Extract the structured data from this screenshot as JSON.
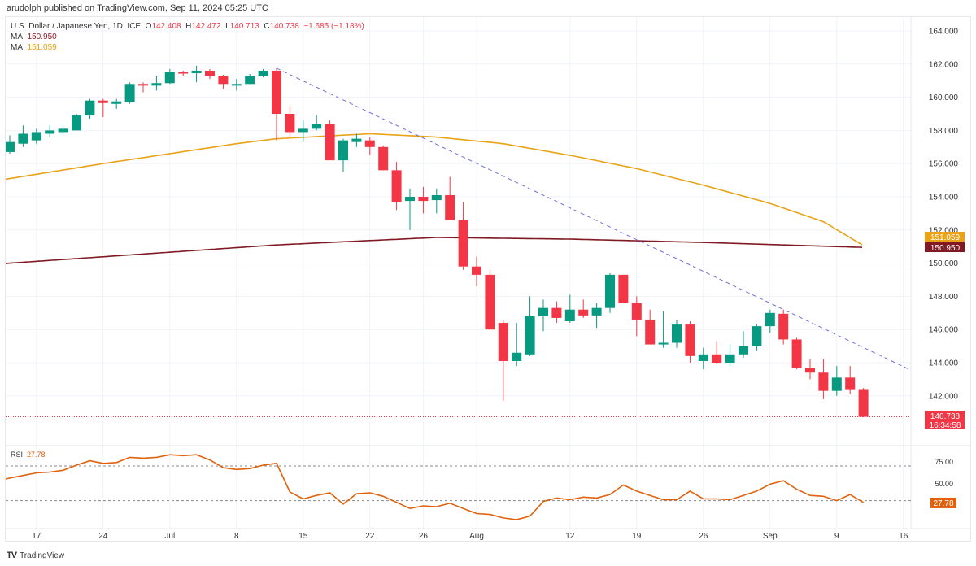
{
  "header": {
    "published": "arudolph published on TradingView.com, Sep 11, 2024 05:25 UTC",
    "symbol": "U.S. Dollar / Japanese Yen, 1D, ICE",
    "o_label": "O",
    "o": "142.408",
    "h_label": "H",
    "h": "142.472",
    "l_label": "L",
    "l": "140.713",
    "c_label": "C",
    "c": "140.738",
    "change": "−1.685 (−1.18%)",
    "ma1_label": "MA",
    "ma1_value": "150.950",
    "ma2_label": "MA",
    "ma2_value": "151.059"
  },
  "rsi": {
    "label": "RSI",
    "value": "27.78"
  },
  "footer": {
    "brand": "TradingView"
  },
  "colors": {
    "up": "#089981",
    "down": "#f23645",
    "ma_long": "#801922",
    "ma_short": "#e8a317",
    "rsi": "#e0620d",
    "trendline": "#6e6ed8"
  },
  "price_labels": {
    "ma_short": "151.059",
    "ma_long": "150.950",
    "last": "140.738",
    "countdown": "16:34:58",
    "rsi_last": "27.78"
  },
  "chart_data": [
    {
      "type": "candlestick",
      "y_axis": {
        "range": [
          140,
          164.6
        ],
        "ticks": [
          "142.000",
          "144.000",
          "146.000",
          "148.000",
          "150.000",
          "152.000",
          "154.000",
          "156.000",
          "158.000",
          "160.000",
          "162.000",
          "164.000"
        ],
        "side": "right"
      },
      "x_ticks": [
        {
          "date": "Jun 17",
          "label": "17"
        },
        {
          "date": "Jun 24",
          "label": "24"
        },
        {
          "date": "Jul 1",
          "label": "Jul"
        },
        {
          "date": "Jul 8",
          "label": "8"
        },
        {
          "date": "Jul 15",
          "label": "15"
        },
        {
          "date": "Jul 22",
          "label": "22"
        },
        {
          "date": "Jul 26",
          "label": "26"
        },
        {
          "date": "Aug 1",
          "label": "Aug"
        },
        {
          "date": "Aug 12",
          "label": "12"
        },
        {
          "date": "Aug 19",
          "label": "19"
        },
        {
          "date": "Aug 26",
          "label": "26"
        },
        {
          "date": "Sep 2",
          "label": "Sep"
        },
        {
          "date": "Sep 9",
          "label": "9"
        },
        {
          "date": "Sep 16",
          "label": "16"
        }
      ],
      "grid": true,
      "candles": [
        {
          "d": "Jun 13",
          "o": 156.7,
          "h": 157.7,
          "l": 156.6,
          "c": 157.3
        },
        {
          "d": "Jun 14",
          "o": 157.2,
          "h": 158.3,
          "l": 157.0,
          "c": 157.8
        },
        {
          "d": "Jun 17",
          "o": 157.4,
          "h": 158.1,
          "l": 157.2,
          "c": 157.9
        },
        {
          "d": "Jun 18",
          "o": 157.8,
          "h": 158.3,
          "l": 157.6,
          "c": 158.0
        },
        {
          "d": "Jun 19",
          "o": 157.9,
          "h": 158.3,
          "l": 157.7,
          "c": 158.1
        },
        {
          "d": "Jun 20",
          "o": 158.0,
          "h": 159.0,
          "l": 158.0,
          "c": 158.9
        },
        {
          "d": "Jun 21",
          "o": 158.9,
          "h": 159.9,
          "l": 158.7,
          "c": 159.8
        },
        {
          "d": "Jun 24",
          "o": 159.8,
          "h": 159.9,
          "l": 158.8,
          "c": 159.65
        },
        {
          "d": "Jun 25",
          "o": 159.6,
          "h": 159.9,
          "l": 159.3,
          "c": 159.75
        },
        {
          "d": "Jun 26",
          "o": 159.7,
          "h": 160.9,
          "l": 159.6,
          "c": 160.8
        },
        {
          "d": "Jun 27",
          "o": 160.8,
          "h": 160.9,
          "l": 160.3,
          "c": 160.7
        },
        {
          "d": "Jun 28",
          "o": 160.7,
          "h": 161.3,
          "l": 160.4,
          "c": 160.85
        },
        {
          "d": "Jul 1",
          "o": 160.85,
          "h": 161.7,
          "l": 160.8,
          "c": 161.5
        },
        {
          "d": "Jul 2",
          "o": 161.5,
          "h": 161.6,
          "l": 161.3,
          "c": 161.45
        },
        {
          "d": "Jul 3",
          "o": 161.45,
          "h": 161.9,
          "l": 160.9,
          "c": 161.6
        },
        {
          "d": "Jul 4",
          "o": 161.6,
          "h": 161.7,
          "l": 161.1,
          "c": 161.3
        },
        {
          "d": "Jul 5",
          "o": 161.3,
          "h": 161.35,
          "l": 160.5,
          "c": 160.8
        },
        {
          "d": "Jul 8",
          "o": 160.7,
          "h": 161.1,
          "l": 160.4,
          "c": 160.8
        },
        {
          "d": "Jul 9",
          "o": 160.8,
          "h": 161.4,
          "l": 160.8,
          "c": 161.3
        },
        {
          "d": "Jul 10",
          "o": 161.3,
          "h": 161.7,
          "l": 161.2,
          "c": 161.6
        },
        {
          "d": "Jul 11",
          "o": 161.6,
          "h": 161.75,
          "l": 157.4,
          "c": 159.0
        },
        {
          "d": "Jul 12",
          "o": 159.0,
          "h": 159.5,
          "l": 157.6,
          "c": 157.9
        },
        {
          "d": "Jul 15",
          "o": 157.9,
          "h": 158.6,
          "l": 157.3,
          "c": 158.1
        },
        {
          "d": "Jul 16",
          "o": 158.1,
          "h": 158.9,
          "l": 158.0,
          "c": 158.4
        },
        {
          "d": "Jul 17",
          "o": 158.4,
          "h": 158.6,
          "l": 156.2,
          "c": 156.2
        },
        {
          "d": "Jul 18",
          "o": 156.2,
          "h": 157.5,
          "l": 155.5,
          "c": 157.4
        },
        {
          "d": "Jul 19",
          "o": 157.3,
          "h": 157.8,
          "l": 157.0,
          "c": 157.5
        },
        {
          "d": "Jul 22",
          "o": 157.4,
          "h": 157.6,
          "l": 156.5,
          "c": 157.0
        },
        {
          "d": "Jul 23",
          "o": 157.0,
          "h": 157.1,
          "l": 155.6,
          "c": 155.6
        },
        {
          "d": "Jul 24",
          "o": 155.6,
          "h": 156.1,
          "l": 153.2,
          "c": 153.7
        },
        {
          "d": "Jul 25",
          "o": 153.75,
          "h": 154.5,
          "l": 152.0,
          "c": 154.0
        },
        {
          "d": "Jul 26",
          "o": 154.0,
          "h": 154.6,
          "l": 153.0,
          "c": 153.75
        },
        {
          "d": "Jul 29",
          "o": 153.8,
          "h": 154.5,
          "l": 153.0,
          "c": 154.1
        },
        {
          "d": "Jul 30",
          "o": 154.1,
          "h": 155.2,
          "l": 152.6,
          "c": 152.6
        },
        {
          "d": "Jul 31",
          "o": 152.6,
          "h": 153.7,
          "l": 149.6,
          "c": 149.8
        },
        {
          "d": "Aug 1",
          "o": 149.8,
          "h": 150.4,
          "l": 148.6,
          "c": 149.3
        },
        {
          "d": "Aug 2",
          "o": 149.3,
          "h": 149.6,
          "l": 146.0,
          "c": 146.0
        },
        {
          "d": "Aug 5",
          "o": 146.4,
          "h": 146.6,
          "l": 141.7,
          "c": 144.1
        },
        {
          "d": "Aug 6",
          "o": 144.1,
          "h": 146.4,
          "l": 143.8,
          "c": 144.6
        },
        {
          "d": "Aug 7",
          "o": 144.5,
          "h": 148.0,
          "l": 144.4,
          "c": 146.8
        },
        {
          "d": "Aug 8",
          "o": 146.8,
          "h": 147.8,
          "l": 145.9,
          "c": 147.3
        },
        {
          "d": "Aug 9",
          "o": 147.3,
          "h": 147.7,
          "l": 146.4,
          "c": 146.7
        },
        {
          "d": "Aug 12",
          "o": 146.5,
          "h": 148.1,
          "l": 146.4,
          "c": 147.2
        },
        {
          "d": "Aug 13",
          "o": 147.2,
          "h": 147.8,
          "l": 146.7,
          "c": 146.85
        },
        {
          "d": "Aug 14",
          "o": 146.85,
          "h": 147.6,
          "l": 146.1,
          "c": 147.3
        },
        {
          "d": "Aug 15",
          "o": 147.3,
          "h": 149.4,
          "l": 147.0,
          "c": 149.3
        },
        {
          "d": "Aug 16",
          "o": 149.3,
          "h": 149.3,
          "l": 147.6,
          "c": 147.6
        },
        {
          "d": "Aug 19",
          "o": 147.6,
          "h": 148.0,
          "l": 145.6,
          "c": 146.6
        },
        {
          "d": "Aug 20",
          "o": 146.6,
          "h": 147.2,
          "l": 145.1,
          "c": 145.1
        },
        {
          "d": "Aug 21",
          "o": 145.1,
          "h": 147.1,
          "l": 144.9,
          "c": 145.2
        },
        {
          "d": "Aug 22",
          "o": 145.2,
          "h": 146.6,
          "l": 144.9,
          "c": 146.3
        },
        {
          "d": "Aug 23",
          "o": 146.3,
          "h": 146.5,
          "l": 144.0,
          "c": 144.4
        },
        {
          "d": "Aug 26",
          "o": 144.1,
          "h": 144.9,
          "l": 143.6,
          "c": 144.5
        },
        {
          "d": "Aug 27",
          "o": 144.5,
          "h": 145.3,
          "l": 143.95,
          "c": 144.0
        },
        {
          "d": "Aug 28",
          "o": 144.0,
          "h": 145.1,
          "l": 143.8,
          "c": 144.5
        },
        {
          "d": "Aug 29",
          "o": 144.5,
          "h": 145.9,
          "l": 144.3,
          "c": 145.0
        },
        {
          "d": "Aug 30",
          "o": 145.0,
          "h": 146.3,
          "l": 144.7,
          "c": 146.2
        },
        {
          "d": "Sep 2",
          "o": 146.2,
          "h": 147.2,
          "l": 145.8,
          "c": 147.0
        },
        {
          "d": "Sep 3",
          "o": 146.95,
          "h": 147.2,
          "l": 145.1,
          "c": 145.4
        },
        {
          "d": "Sep 4",
          "o": 145.4,
          "h": 145.5,
          "l": 143.6,
          "c": 143.7
        },
        {
          "d": "Sep 5",
          "o": 143.7,
          "h": 144.2,
          "l": 143.0,
          "c": 143.4
        },
        {
          "d": "Sep 6",
          "o": 143.4,
          "h": 144.2,
          "l": 141.8,
          "c": 142.3
        },
        {
          "d": "Sep 9",
          "o": 142.3,
          "h": 143.8,
          "l": 142.0,
          "c": 143.1
        },
        {
          "d": "Sep 10",
          "o": 143.1,
          "h": 143.8,
          "l": 142.1,
          "c": 142.4
        },
        {
          "d": "Sep 11",
          "o": 142.408,
          "h": 142.472,
          "l": 140.713,
          "c": 140.738
        }
      ],
      "moving_averages": [
        {
          "name": "MA",
          "last": 150.95,
          "color": "#801922",
          "points": [
            {
              "d": "Jun 13",
              "v": 150.0
            },
            {
              "d": "Jul 11",
              "v": 151.1
            },
            {
              "d": "Jul 29",
              "v": 151.55
            },
            {
              "d": "Aug 12",
              "v": 151.45
            },
            {
              "d": "Aug 26",
              "v": 151.25
            },
            {
              "d": "Sep 11",
              "v": 150.95
            }
          ]
        },
        {
          "name": "MA",
          "last": 151.059,
          "color": "#e8a317",
          "points": [
            {
              "d": "Jun 13",
              "v": 155.1
            },
            {
              "d": "Jun 24",
              "v": 156.0
            },
            {
              "d": "Jul 8",
              "v": 157.2
            },
            {
              "d": "Jul 11",
              "v": 157.5
            },
            {
              "d": "Jul 22",
              "v": 157.8
            },
            {
              "d": "Jul 29",
              "v": 157.6
            },
            {
              "d": "Aug 5",
              "v": 157.2
            },
            {
              "d": "Aug 12",
              "v": 156.5
            },
            {
              "d": "Aug 19",
              "v": 155.7
            },
            {
              "d": "Aug 26",
              "v": 154.7
            },
            {
              "d": "Sep 2",
              "v": 153.6
            },
            {
              "d": "Sep 6",
              "v": 152.5
            },
            {
              "d": "Sep 11",
              "v": 151.06
            }
          ]
        }
      ],
      "trendline": {
        "style": "dashed",
        "from": {
          "d": "Jul 11",
          "v": 161.75
        },
        "to": {
          "d": "Sep 18",
          "v": 143.0
        }
      },
      "last_price_line": 140.738
    },
    {
      "type": "line",
      "title": "RSI",
      "y_ticks": [
        "75.00",
        "50.00"
      ],
      "bands": [
        70,
        30
      ],
      "values": [
        56,
        59,
        62,
        63,
        65,
        71,
        76,
        73,
        74,
        80,
        79,
        80,
        83,
        82,
        83,
        77,
        68,
        66,
        67,
        71,
        73,
        40,
        32,
        36,
        39,
        26,
        38,
        39,
        35,
        28,
        21,
        24,
        23,
        27,
        21,
        15,
        14,
        10,
        8,
        12,
        29,
        33,
        31,
        34,
        33,
        37,
        48,
        41,
        36,
        31,
        31,
        41,
        32,
        32,
        31,
        36,
        41,
        49,
        53,
        43,
        36,
        35,
        30,
        37,
        27.78
      ]
    }
  ]
}
